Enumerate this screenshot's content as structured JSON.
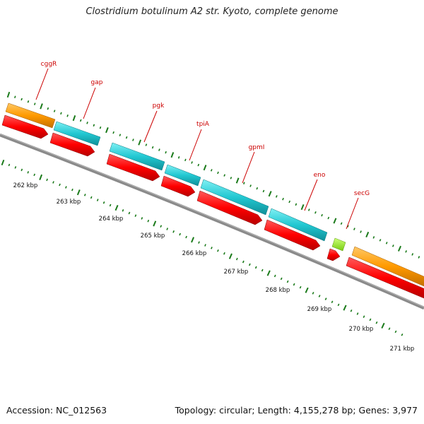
{
  "title": "Clostridium botulinum A2 str. Kyoto, complete genome",
  "footer": {
    "accession": "Accession: NC_012563",
    "summary": "Topology: circular; Length: 4,155,278 bp; Genes: 3,977"
  },
  "colors": {
    "cds_forward": "#ff0000",
    "gene_cyan": "#22c8d2",
    "gene_orange": "#ff9a00",
    "gene_lime": "#99ee22",
    "backbone": "#808080",
    "ticks": "#1a7a1a",
    "gene_label": "#cc0000"
  },
  "gene_labels": [
    {
      "name": "cggR"
    },
    {
      "name": "gap"
    },
    {
      "name": "pgk"
    },
    {
      "name": "tpiA"
    },
    {
      "name": "gpmI"
    },
    {
      "name": "eno"
    },
    {
      "name": "secG"
    }
  ],
  "kbp_labels": [
    "262 kbp",
    "263 kbp",
    "264 kbp",
    "265 kbp",
    "266 kbp",
    "267 kbp",
    "268 kbp",
    "269 kbp",
    "270 kbp",
    "271 kbp"
  ]
}
